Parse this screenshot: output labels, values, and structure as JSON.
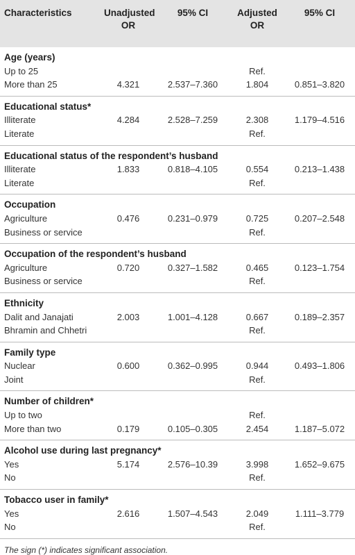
{
  "table": {
    "header": [
      "Characteristics",
      "Unadjusted OR",
      "95% CI",
      "Adjusted OR",
      "95% CI"
    ],
    "sections": [
      {
        "title": "Age (years)",
        "rows": [
          {
            "label": "Up to 25",
            "adjusted_or": "Ref."
          },
          {
            "label": "More than 25",
            "unadjusted_or": "4.321",
            "unadjusted_ci": "2.537–7.360",
            "adjusted_or": "1.804",
            "adjusted_ci": "0.851–3.820"
          }
        ]
      },
      {
        "title": "Educational status*",
        "rows": [
          {
            "label": "Illiterate",
            "unadjusted_or": "4.284",
            "unadjusted_ci": "2.528–7.259",
            "adjusted_or": "2.308",
            "adjusted_ci": "1.179–4.516"
          },
          {
            "label": "Literate",
            "adjusted_or": "Ref."
          }
        ]
      },
      {
        "title": "Educational status of the respondent’s husband",
        "rows": [
          {
            "label": "Illiterate",
            "unadjusted_or": "1.833",
            "unadjusted_ci": "0.818–4.105",
            "adjusted_or": "0.554",
            "adjusted_ci": "0.213–1.438"
          },
          {
            "label": "Literate",
            "adjusted_or": "Ref."
          }
        ]
      },
      {
        "title": "Occupation",
        "rows": [
          {
            "label": "Agriculture",
            "unadjusted_or": "0.476",
            "unadjusted_ci": "0.231–0.979",
            "adjusted_or": "0.725",
            "adjusted_ci": "0.207–2.548"
          },
          {
            "label": "Business or service",
            "adjusted_or": "Ref."
          }
        ]
      },
      {
        "title": "Occupation of the respondent’s husband",
        "rows": [
          {
            "label": "Agriculture",
            "unadjusted_or": "0.720",
            "unadjusted_ci": "0.327–1.582",
            "adjusted_or": "0.465",
            "adjusted_ci": "0.123–1.754"
          },
          {
            "label": "Business or service",
            "adjusted_or": "Ref."
          }
        ]
      },
      {
        "title": "Ethnicity",
        "rows": [
          {
            "label": "Dalit and Janajati",
            "unadjusted_or": "2.003",
            "unadjusted_ci": "1.001–4.128",
            "adjusted_or": "0.667",
            "adjusted_ci": "0.189–2.357"
          },
          {
            "label": "Bhramin and Chhetri",
            "adjusted_or": "Ref."
          }
        ]
      },
      {
        "title": "Family type",
        "rows": [
          {
            "label": "Nuclear",
            "unadjusted_or": "0.600",
            "unadjusted_ci": "0.362–0.995",
            "adjusted_or": "0.944",
            "adjusted_ci": "0.493–1.806"
          },
          {
            "label": "Joint",
            "adjusted_or": "Ref."
          }
        ]
      },
      {
        "title": "Number of children*",
        "rows": [
          {
            "label": "Up to two",
            "adjusted_or": "Ref."
          },
          {
            "label": "More than two",
            "unadjusted_or": "0.179",
            "unadjusted_ci": "0.105–0.305",
            "adjusted_or": "2.454",
            "adjusted_ci": "1.187–5.072"
          }
        ]
      },
      {
        "title": "Alcohol use during last pregnancy*",
        "rows": [
          {
            "label": "Yes",
            "unadjusted_or": "5.174",
            "unadjusted_ci": "2.576–10.39",
            "adjusted_or": "3.998",
            "adjusted_ci": "1.652–9.675"
          },
          {
            "label": "No",
            "adjusted_or": "Ref."
          }
        ]
      },
      {
        "title": "Tobacco user in family*",
        "rows": [
          {
            "label": "Yes",
            "unadjusted_or": "2.616",
            "unadjusted_ci": "1.507–4.543",
            "adjusted_or": "2.049",
            "adjusted_ci": "1.111–3.779"
          },
          {
            "label": "No",
            "adjusted_or": "Ref."
          }
        ]
      }
    ],
    "footnote": "The sign (*) indicates significant association."
  }
}
